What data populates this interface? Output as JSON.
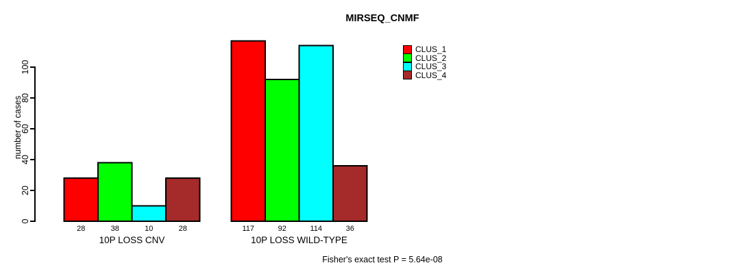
{
  "chart_data": {
    "type": "bar",
    "title": "MIRSEQ_CNMF",
    "ylabel": "number of cases",
    "xlabel": "",
    "categories": [
      "10P LOSS CNV",
      "10P LOSS WILD-TYPE"
    ],
    "series": [
      {
        "name": "CLUS_1",
        "color": "#ff0000",
        "values": [
          28,
          117
        ]
      },
      {
        "name": "CLUS_2",
        "color": "#00ff00",
        "values": [
          38,
          92
        ]
      },
      {
        "name": "CLUS_3",
        "color": "#00ffff",
        "values": [
          10,
          114
        ]
      },
      {
        "name": "CLUS_4",
        "color": "#a52a2a",
        "values": [
          28,
          36
        ]
      }
    ],
    "bar_value_labels": [
      [
        "28",
        "38",
        "10",
        "28"
      ],
      [
        "117",
        "92",
        "114",
        "36"
      ]
    ],
    "yticks": [
      "0",
      "20",
      "40",
      "60",
      "80",
      "100"
    ],
    "ytick_values": [
      0,
      20,
      40,
      60,
      80,
      100
    ],
    "ylim": [
      0,
      122
    ],
    "grid": false,
    "bar_border_color": "#000000",
    "legend_position": "upper-right",
    "annotation": "Fisher's exact test P = 5.64e-08"
  }
}
